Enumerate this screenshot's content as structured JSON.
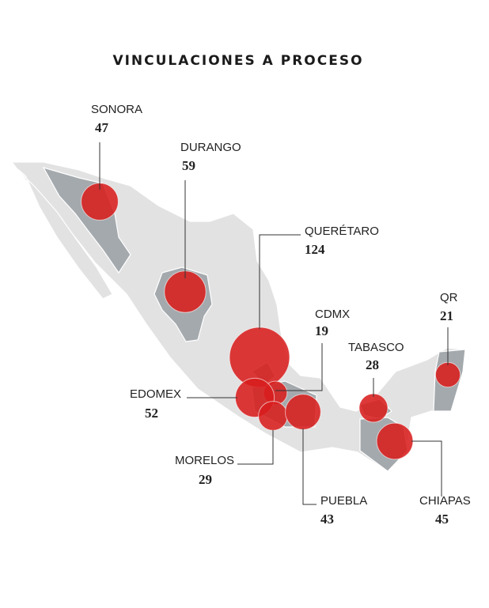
{
  "chart_data": {
    "type": "bubble_map",
    "title": "VINCULACIONES A PROCESO",
    "categories": [
      "SONORA",
      "DURANGO",
      "QUERÉTARO",
      "CDMX",
      "QR",
      "TABASCO",
      "EDOMEX",
      "MORELOS",
      "PUEBLA",
      "CHIAPAS"
    ],
    "values": [
      47,
      59,
      124,
      19,
      21,
      28,
      52,
      29,
      43,
      45
    ],
    "color": "#d81e1e"
  }
}
